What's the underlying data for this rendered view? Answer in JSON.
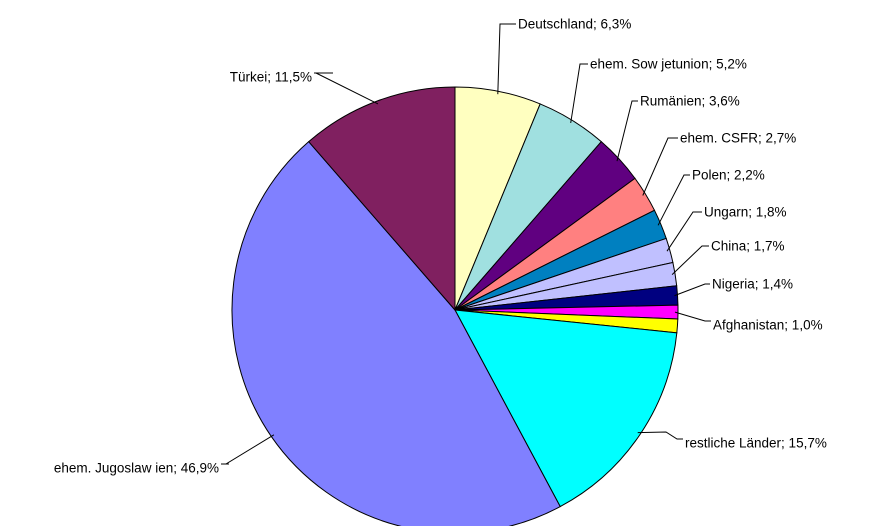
{
  "chart_data": {
    "type": "pie",
    "title": "",
    "slices": [
      {
        "label": "Deutschland; 6,3%",
        "value": 6.3,
        "color": "#FFFFC0"
      },
      {
        "label": "ehem. Sow jetunion; 5,2%",
        "value": 5.2,
        "color": "#A0E0E0"
      },
      {
        "label": "Rumänien; 3,6%",
        "value": 3.6,
        "color": "#600080"
      },
      {
        "label": "ehem. CSFR; 2,7%",
        "value": 2.7,
        "color": "#FF8080"
      },
      {
        "label": "Polen; 2,2%",
        "value": 2.2,
        "color": "#0080C0"
      },
      {
        "label": "Ungarn; 1,8%",
        "value": 1.8,
        "color": "#C0C0FF"
      },
      {
        "label": "China; 1,7%",
        "value": 1.7,
        "color": "#C0C0FF"
      },
      {
        "label": "Nigeria; 1,4%",
        "value": 1.4,
        "color": "#000080"
      },
      {
        "label": "Afghanistan; 1,0%",
        "value": 1.0,
        "color": "#FF00FF"
      },
      {
        "label": "",
        "value": 1.0,
        "color": "#FFFF00"
      },
      {
        "label": "restliche Länder; 15,7%",
        "value": 15.7,
        "color": "#00FFFF"
      },
      {
        "label": "ehem. Jugoslaw ien; 46,9%",
        "value": 46.9,
        "color": "#8080FF"
      },
      {
        "label": "Türkei; 11,5%",
        "value": 11.5,
        "color": "#802060"
      }
    ],
    "legend": "none"
  }
}
